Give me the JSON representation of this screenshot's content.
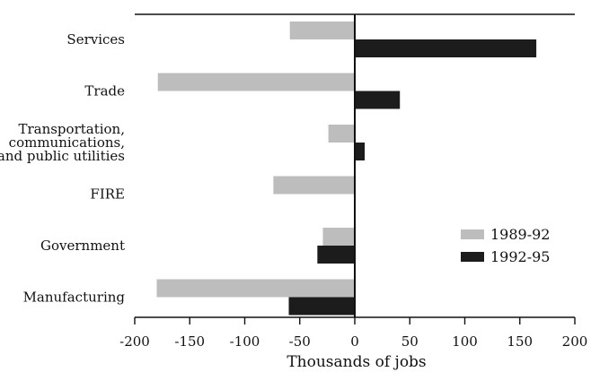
{
  "chart_data": {
    "type": "bar",
    "orientation": "horizontal",
    "categories": [
      [
        "Services"
      ],
      [
        "Trade"
      ],
      [
        "Transportation,",
        "communications,",
        "and public utilities"
      ],
      [
        "FIRE"
      ],
      [
        "Government"
      ],
      [
        "Manufacturing"
      ]
    ],
    "series": [
      {
        "name": "1989-92",
        "color": "#bdbdbd",
        "values": [
          -59,
          -179,
          -24,
          -74,
          -29,
          -180
        ]
      },
      {
        "name": "1992-95",
        "color": "#1c1c1c",
        "values": [
          165,
          41,
          9,
          0,
          -34,
          -60
        ]
      }
    ],
    "xlabel": "Thousands of jobs",
    "ylabel": "",
    "xlim": [
      -200,
      200
    ],
    "xticks": [
      "-200",
      "-150",
      "-100",
      "-50",
      "0",
      "50",
      "100",
      "150",
      "200"
    ],
    "grid": false,
    "legend_position": "right"
  }
}
